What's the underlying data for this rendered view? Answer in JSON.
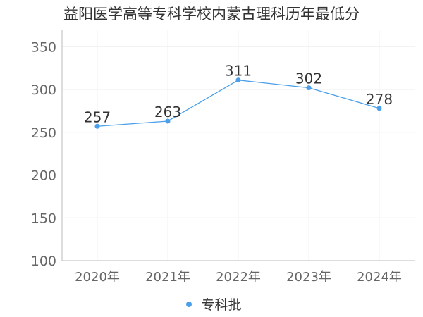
{
  "chart_data": {
    "type": "line",
    "title": "益阳医学高等专科学校内蒙古理科历年最低分",
    "categories": [
      "2020年",
      "2021年",
      "2022年",
      "2023年",
      "2024年"
    ],
    "series": [
      {
        "name": "专科批",
        "values": [
          257,
          263,
          311,
          302,
          278
        ],
        "color": "#4a9fe8"
      }
    ],
    "yticks": [
      100,
      150,
      200,
      250,
      300,
      350
    ],
    "ylim": [
      100,
      370
    ],
    "grid": true,
    "legend": "bottom"
  }
}
